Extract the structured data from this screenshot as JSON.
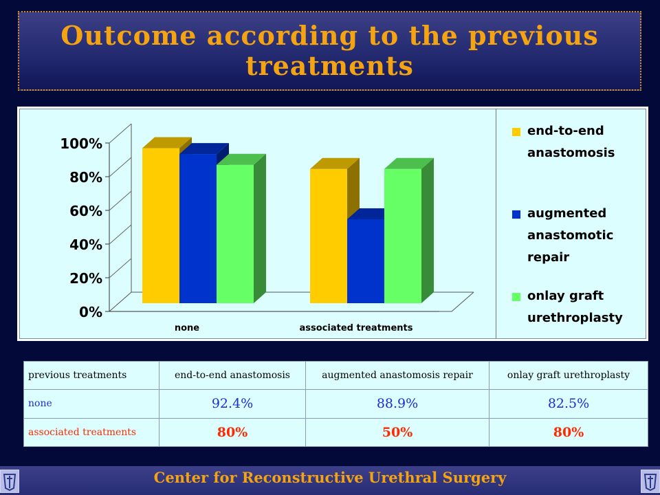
{
  "title": "Outcome according to the previous treatments",
  "footer": "Center for Reconstructive Urethral Surgery",
  "colors": {
    "background": "#030a3a",
    "title": "#f4a312",
    "chart_bg": "#dcfeff",
    "series": [
      "#ffcc00",
      "#0033cc",
      "#66ff66"
    ],
    "row_none": "#1c2bd6",
    "row_associated": "#ff2a00"
  },
  "chart_data": {
    "type": "bar",
    "categories": [
      "none",
      "associated treatments"
    ],
    "series": [
      {
        "name": "end-to-end anastomosis",
        "values": [
          92.4,
          80
        ]
      },
      {
        "name": "augmented anastomotic repair",
        "values": [
          88.9,
          50
        ]
      },
      {
        "name": "onlay graft urethroplasty",
        "values": [
          82.5,
          80
        ]
      }
    ],
    "yticks": [
      "0%",
      "20%",
      "40%",
      "60%",
      "80%",
      "100%"
    ],
    "ylim": [
      0,
      100
    ],
    "legend_position": "right",
    "grid": false,
    "three_d": true
  },
  "table": {
    "headers": [
      "previous treatments",
      "end-to-end anastomosis",
      "augmented anastomosis repair",
      "onlay graft urethroplasty"
    ],
    "rows": [
      {
        "label": "none",
        "values": [
          "92.4%",
          "88.9%",
          "82.5%"
        ]
      },
      {
        "label": "associated treatments",
        "values": [
          "80%",
          "50%",
          "80%"
        ]
      }
    ]
  },
  "icons": {
    "left_logo": "institution-logo-icon",
    "right_logo": "institution-logo-icon"
  }
}
